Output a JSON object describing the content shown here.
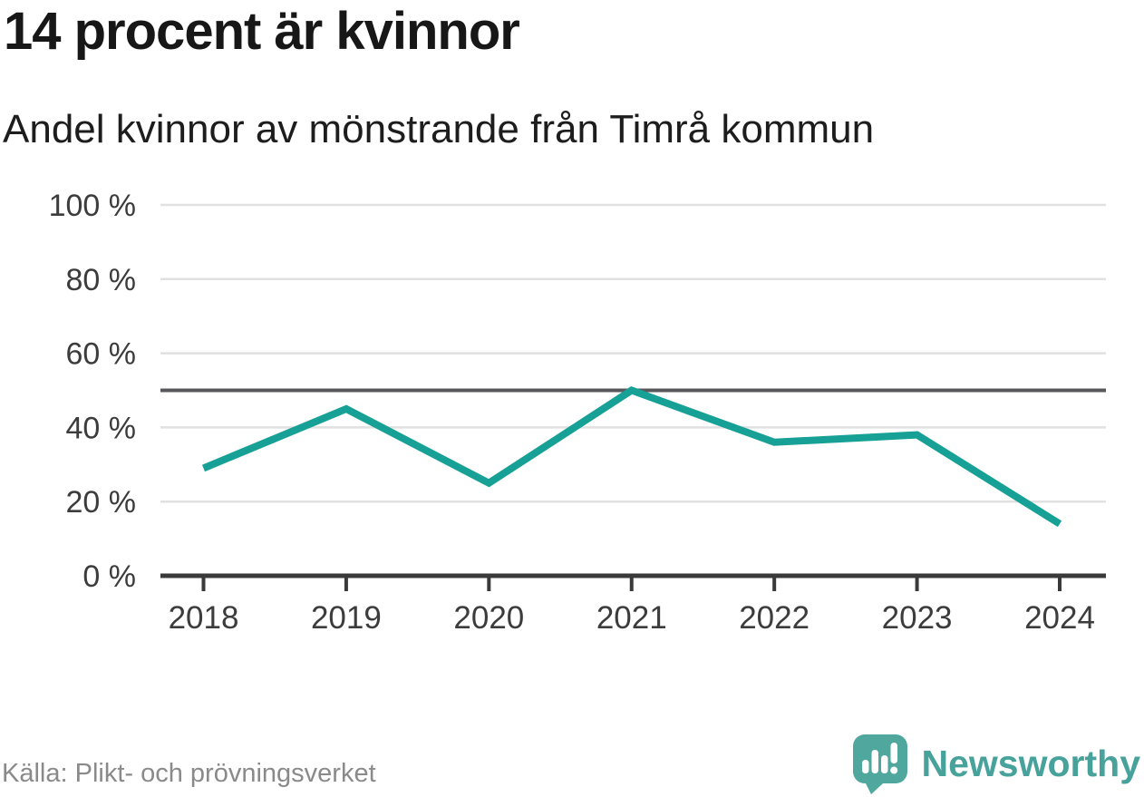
{
  "header": {
    "title": "14 procent är kvinnor",
    "subtitle": "Andel kvinnor av mönstrande från Timrå kommun"
  },
  "chart_data": {
    "type": "line",
    "title": "14 procent är kvinnor",
    "subtitle": "Andel kvinnor av mönstrande från Timrå kommun",
    "categories": [
      "2018",
      "2019",
      "2020",
      "2021",
      "2022",
      "2023",
      "2024"
    ],
    "series": [
      {
        "name": "Andel kvinnor av mönstrande",
        "values": [
          29,
          45,
          25,
          50,
          36,
          38,
          14
        ]
      }
    ],
    "unit": "%",
    "ylim": [
      0,
      100
    ],
    "yticks": [
      0,
      20,
      40,
      60,
      80,
      100
    ],
    "ytick_labels": [
      "0 %",
      "20 %",
      "40 %",
      "60 %",
      "80 %",
      "100 %"
    ],
    "reference_line": {
      "value": 50
    },
    "grid": "horizontal",
    "legend": "none"
  },
  "footer": {
    "source": "Källa: Plikt- och prövningsverket",
    "brand": "Newsworthy"
  },
  "colors": {
    "accent_line": "#16a096",
    "gridline": "#e1e1e1",
    "reference_line": "#58585b",
    "axis": "#3a3a3a",
    "axis_text": "#3c3c3c",
    "title_text": "#171717",
    "subtitle_text": "#1d1d1d",
    "source_text": "#8a8a8a",
    "brand_teal": "#46a29a",
    "logo_bubble": "#4fa79d",
    "logo_glyph": "#ffffff"
  }
}
